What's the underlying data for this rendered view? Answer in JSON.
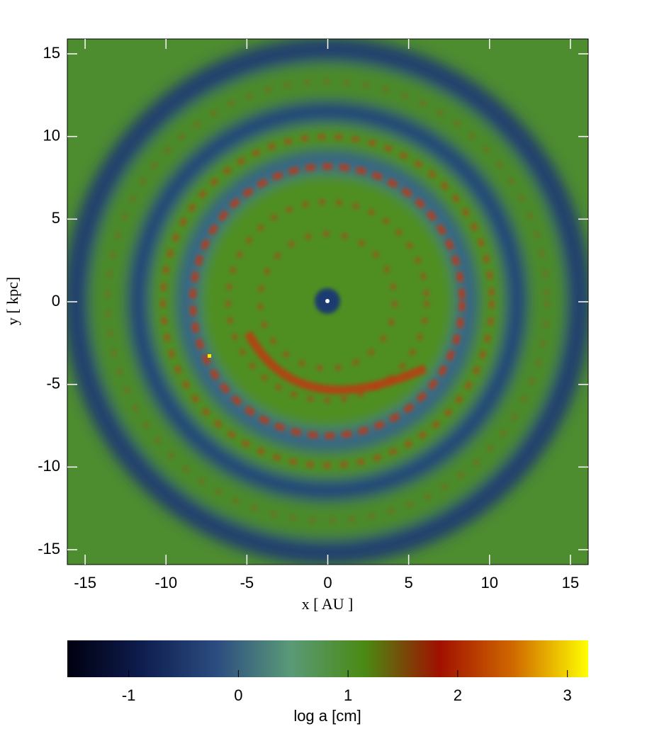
{
  "chart_data": {
    "type": "image",
    "x_label": "x [ AU ]",
    "y_label": "y [ kpc]",
    "xlim": [
      -16.1,
      16.1
    ],
    "ylim": [
      -15.9,
      15.9
    ],
    "xticks": [
      -15,
      -10,
      -5,
      0,
      5,
      10,
      15
    ],
    "yticks": [
      -15,
      -10,
      -5,
      0,
      5,
      10,
      15
    ],
    "colorbar": {
      "label": "log a [cm]",
      "lim": [
        -1.56,
        3.19
      ],
      "ticks": [
        -1,
        0,
        1,
        2,
        3
      ],
      "colors": [
        "#000010",
        "#0e1d4e",
        "#2c4c80",
        "#5a9a78",
        "#4a8a12",
        "#a01000",
        "#d06a00",
        "#ffff00"
      ]
    }
  }
}
